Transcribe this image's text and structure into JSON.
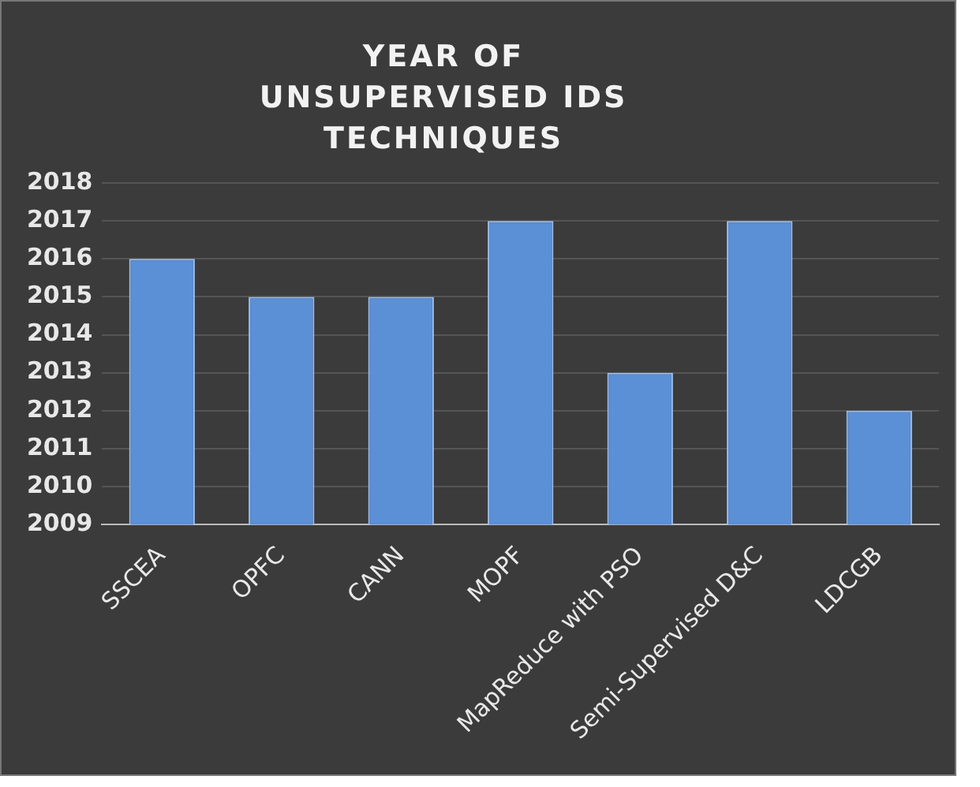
{
  "chart_data": {
    "type": "bar",
    "title": "YEAR OF UNSUPERVISED IDS TECHNIQUES",
    "categories": [
      "SSCEA",
      "OPFC",
      "CANN",
      "MOPF",
      "MapReduce with PSO",
      "Semi-Supervised D&C",
      "LDCGB"
    ],
    "values": [
      2016,
      2015,
      2015,
      2017,
      2013,
      2017,
      2012
    ],
    "color": "#5b8fd6",
    "ylim": [
      2009,
      2018
    ],
    "yticks": [
      2009,
      2010,
      2011,
      2012,
      2013,
      2014,
      2015,
      2016,
      2017,
      2018
    ],
    "grid": "y",
    "legend": false
  }
}
